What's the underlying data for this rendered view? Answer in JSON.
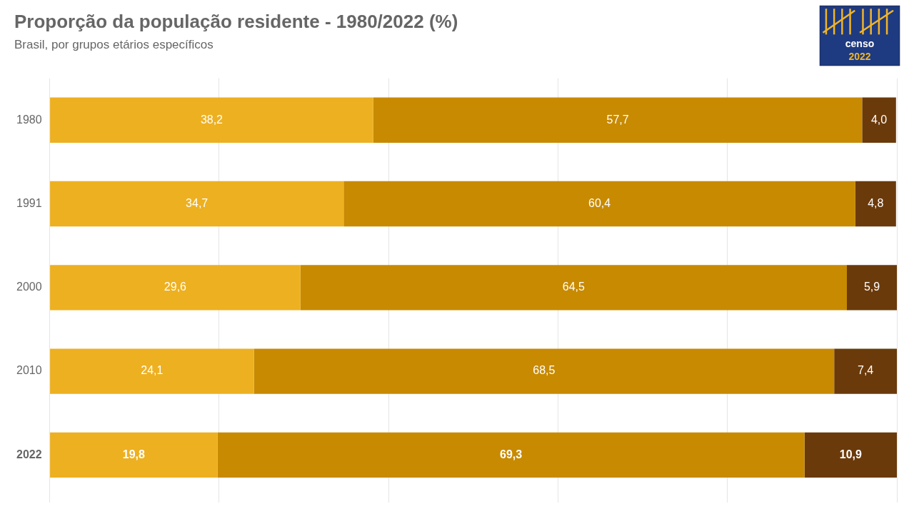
{
  "chart_data": {
    "type": "bar",
    "orientation": "horizontal",
    "stacked": true,
    "title": "Proporção da população residente - 1980/2022 (%)",
    "subtitle": "Brasil, por grupos etários específicos",
    "categories": [
      "1980",
      "1991",
      "2000",
      "2010",
      "2022"
    ],
    "series": [
      {
        "color": "#EDB020",
        "values": [
          38.2,
          34.7,
          29.6,
          24.1,
          19.8
        ],
        "value_labels": [
          "38,2",
          "34,7",
          "29,6",
          "24,1",
          "19,8"
        ]
      },
      {
        "color": "#C88A00",
        "values": [
          57.7,
          60.4,
          64.5,
          68.5,
          69.3
        ],
        "value_labels": [
          "57,7",
          "60,4",
          "64,5",
          "68,5",
          "69,3"
        ]
      },
      {
        "color": "#6B3A0A",
        "values": [
          4.0,
          4.8,
          5.9,
          7.4,
          10.9
        ],
        "value_labels": [
          "4,0",
          "4,8",
          "5,9",
          "7,4",
          "10,9"
        ]
      }
    ],
    "xlim": [
      0,
      100
    ],
    "xticks": [
      0,
      20,
      40,
      60,
      80,
      100
    ],
    "grid": true,
    "tick_labels": "y",
    "data_labels": true,
    "annotations": [
      "censo",
      "2022"
    ]
  }
}
